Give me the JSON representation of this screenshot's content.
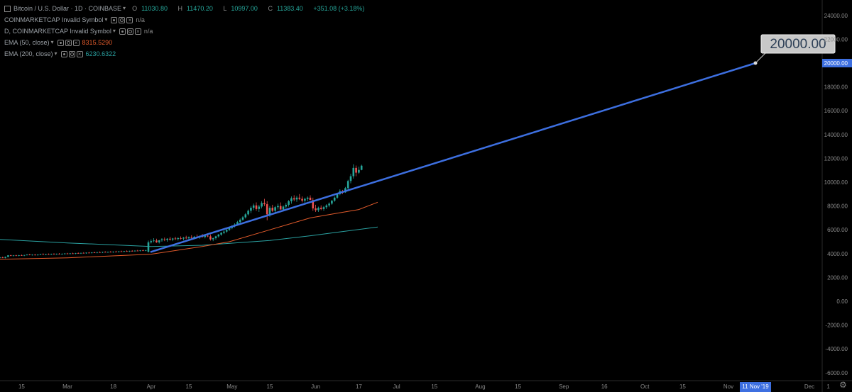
{
  "legend": {
    "main": {
      "title": "Bitcoin / U.S. Dollar · 1D · COINBASE",
      "o_label": "O",
      "o": "11030.80",
      "h_label": "H",
      "h": "11470.20",
      "l_label": "L",
      "l": "10997.00",
      "c_label": "C",
      "c": "11383.40",
      "change": "+351.08 (+3.18%)"
    },
    "indicators": [
      {
        "title": "COINMARKETCAP Invalid Symbol",
        "value": "n/a"
      },
      {
        "title": "D, COINMARKETCAP Invalid Symbol",
        "value": "n/a"
      },
      {
        "title": "EMA (50, close)",
        "value": "8315.5290"
      },
      {
        "title": "EMA (200, close)",
        "value": "6230.6322"
      }
    ]
  },
  "colors": {
    "up": "#26a69a",
    "down": "#ef5350",
    "trendline": "#3d6fe0",
    "ema50": "#e05a2b",
    "ema200": "#2aa1a1",
    "axis_text": "#8a8a8a",
    "price_marker_bg": "#3d6fe0",
    "callout_bg": "#c8c8c8",
    "callout_text": "#2e4057"
  },
  "chart_data": {
    "type": "candlestick",
    "symbol": "Bitcoin / U.S. Dollar",
    "interval": "1D",
    "exchange": "COINBASE",
    "ylim": [
      -7000,
      25000
    ],
    "y_ticks": [
      "24000.00",
      "22000.00",
      "20000.00",
      "18000.00",
      "16000.00",
      "14000.00",
      "12000.00",
      "10000.00",
      "8000.00",
      "6000.00",
      "4000.00",
      "2000.00",
      "0.00",
      "-2000.00",
      "-4000.00",
      "-6000.00"
    ],
    "x_ticks": [
      "15",
      "Mar",
      "18",
      "Apr",
      "15",
      "May",
      "15",
      "Jun",
      "17",
      "Jul",
      "15",
      "Aug",
      "15",
      "Sep",
      "16",
      "Oct",
      "15",
      "Nov",
      "15",
      "Dec",
      "1"
    ],
    "x_tick_days": [
      -17,
      0,
      17,
      31,
      45,
      61,
      75,
      92,
      108,
      122,
      136,
      153,
      167,
      184,
      199,
      214,
      228,
      245,
      259,
      275,
      282
    ],
    "date_marker": {
      "label": "11 Nov '19",
      "day": 255
    },
    "price_marker": {
      "label": "20000.00",
      "value": 20000
    },
    "trendline": {
      "start": {
        "day": 31,
        "value": 4150
      },
      "end": {
        "day": 255,
        "value": 20000
      },
      "label": "20000.00"
    },
    "ema50": {
      "day": [
        -30,
        0,
        31,
        50,
        60,
        75,
        90,
        100,
        108,
        115
      ],
      "value": [
        3500,
        3650,
        3950,
        4600,
        5000,
        6000,
        7000,
        7400,
        7700,
        8315
      ]
    },
    "ema200": {
      "day": [
        -30,
        0,
        31,
        50,
        75,
        90,
        100,
        115
      ],
      "value": [
        5250,
        4900,
        4600,
        4700,
        5100,
        5500,
        5800,
        6230
      ]
    },
    "candles": {
      "start_day": -30,
      "ohlc": [
        [
          3580,
          3650,
          3520,
          3620
        ],
        [
          3620,
          3680,
          3560,
          3600
        ],
        [
          3600,
          3660,
          3540,
          3640
        ],
        [
          3640,
          3700,
          3590,
          3610
        ],
        [
          3610,
          3680,
          3560,
          3660
        ],
        [
          3660,
          3720,
          3610,
          3690
        ],
        [
          3690,
          3750,
          3620,
          3640
        ],
        [
          3640,
          3760,
          3600,
          3720
        ],
        [
          3720,
          3880,
          3700,
          3860
        ],
        [
          3860,
          3900,
          3780,
          3820
        ],
        [
          3820,
          3880,
          3770,
          3850
        ],
        [
          3850,
          3900,
          3800,
          3830
        ],
        [
          3830,
          3890,
          3780,
          3870
        ],
        [
          3870,
          3920,
          3820,
          3840
        ],
        [
          3840,
          3900,
          3790,
          3880
        ],
        [
          3880,
          3950,
          3840,
          3920
        ],
        [
          3920,
          3980,
          3860,
          3890
        ],
        [
          3890,
          3940,
          3840,
          3910
        ],
        [
          3910,
          3960,
          3850,
          3880
        ],
        [
          3880,
          3940,
          3830,
          3920
        ],
        [
          3920,
          3990,
          3880,
          3960
        ],
        [
          3960,
          4020,
          3900,
          3930
        ],
        [
          3930,
          3990,
          3880,
          3960
        ],
        [
          3960,
          4010,
          3900,
          3940
        ],
        [
          3940,
          4000,
          3890,
          3970
        ],
        [
          3970,
          4030,
          3920,
          3950
        ],
        [
          3950,
          4010,
          3900,
          3990
        ],
        [
          3990,
          4050,
          3930,
          3960
        ],
        [
          3960,
          4020,
          3910,
          3980
        ],
        [
          3980,
          4040,
          3930,
          4010
        ],
        [
          4010,
          4060,
          3950,
          3990
        ],
        [
          3990,
          4050,
          3940,
          4020
        ],
        [
          4020,
          4080,
          3970,
          4000
        ],
        [
          4000,
          4060,
          3950,
          4040
        ],
        [
          4040,
          4100,
          3990,
          4020
        ],
        [
          4020,
          4080,
          3970,
          4060
        ],
        [
          4060,
          4120,
          4010,
          4040
        ],
        [
          4040,
          4100,
          3990,
          4080
        ],
        [
          4080,
          4140,
          4030,
          4060
        ],
        [
          4060,
          4120,
          4010,
          4100
        ],
        [
          4100,
          4160,
          4050,
          4080
        ],
        [
          4080,
          4140,
          4030,
          4120
        ],
        [
          4120,
          4180,
          4070,
          4100
        ],
        [
          4100,
          4160,
          4050,
          4140
        ],
        [
          4140,
          4200,
          4090,
          4110
        ],
        [
          4110,
          4170,
          4060,
          4150
        ],
        [
          4150,
          4210,
          4100,
          4130
        ],
        [
          4130,
          4190,
          4080,
          4170
        ],
        [
          4170,
          4230,
          4120,
          4150
        ],
        [
          4150,
          4210,
          4100,
          4190
        ],
        [
          4190,
          4250,
          4140,
          4170
        ],
        [
          4170,
          4230,
          4120,
          4210
        ],
        [
          4210,
          4270,
          4160,
          4190
        ],
        [
          4190,
          4250,
          4140,
          4230
        ],
        [
          4230,
          4290,
          4180,
          4210
        ],
        [
          4210,
          4270,
          4160,
          4250
        ],
        [
          4250,
          4310,
          4200,
          4230
        ],
        [
          4230,
          4290,
          4180,
          4270
        ],
        [
          4270,
          4330,
          4220,
          4250
        ],
        [
          4250,
          4310,
          4200,
          4290
        ],
        [
          4150,
          5100,
          4100,
          4950
        ],
        [
          4950,
          5200,
          4850,
          5050
        ],
        [
          5050,
          5300,
          4950,
          5100
        ],
        [
          5100,
          5250,
          4900,
          4950
        ],
        [
          4950,
          5150,
          4850,
          5120
        ],
        [
          5120,
          5300,
          5000,
          5200
        ],
        [
          5200,
          5350,
          5050,
          5150
        ],
        [
          5150,
          5300,
          5000,
          5250
        ],
        [
          5250,
          5400,
          5100,
          5180
        ],
        [
          5180,
          5320,
          5050,
          5270
        ],
        [
          5270,
          5420,
          5150,
          5230
        ],
        [
          5230,
          5380,
          5100,
          5300
        ],
        [
          5300,
          5450,
          5180,
          5260
        ],
        [
          5260,
          5400,
          5120,
          5340
        ],
        [
          5340,
          5500,
          5220,
          5290
        ],
        [
          5290,
          5440,
          5160,
          5380
        ],
        [
          5380,
          5550,
          5250,
          5330
        ],
        [
          5330,
          5480,
          5200,
          5420
        ],
        [
          5420,
          5600,
          5300,
          5370
        ],
        [
          5370,
          5520,
          5250,
          5460
        ],
        [
          5460,
          5650,
          5350,
          5400
        ],
        [
          5400,
          5560,
          5280,
          5500
        ],
        [
          5500,
          5700,
          5380,
          5450
        ],
        [
          5450,
          5600,
          5100,
          5200
        ],
        [
          5200,
          5350,
          5050,
          5300
        ],
        [
          5300,
          5500,
          5180,
          5450
        ],
        [
          5450,
          5650,
          5350,
          5600
        ],
        [
          5600,
          5800,
          5500,
          5750
        ],
        [
          5750,
          5950,
          5650,
          5850
        ],
        [
          5850,
          6050,
          5750,
          6000
        ],
        [
          6000,
          6250,
          5900,
          6150
        ],
        [
          6150,
          6400,
          6050,
          6300
        ],
        [
          6300,
          6550,
          6200,
          6450
        ],
        [
          6450,
          6750,
          6350,
          6650
        ],
        [
          6650,
          6950,
          6550,
          6850
        ],
        [
          6850,
          7150,
          6750,
          7050
        ],
        [
          7050,
          7400,
          6950,
          7300
        ],
        [
          7300,
          7700,
          7200,
          7600
        ],
        [
          7600,
          8000,
          7400,
          7850
        ],
        [
          7850,
          8200,
          7650,
          8050
        ],
        [
          8050,
          8300,
          7600,
          7750
        ],
        [
          7750,
          8100,
          7500,
          7950
        ],
        [
          7950,
          8400,
          7800,
          8250
        ],
        [
          8250,
          8600,
          8000,
          8150
        ],
        [
          8150,
          8400,
          6800,
          7300
        ],
        [
          7300,
          8000,
          7100,
          7850
        ],
        [
          7850,
          8100,
          7500,
          7600
        ],
        [
          7600,
          8000,
          7450,
          7900
        ],
        [
          7900,
          8200,
          7700,
          8000
        ],
        [
          8000,
          8300,
          7800,
          7700
        ],
        [
          7700,
          8050,
          7550,
          7950
        ],
        [
          7950,
          8250,
          7800,
          8100
        ],
        [
          8100,
          8500,
          7950,
          8400
        ],
        [
          8400,
          8800,
          8200,
          8650
        ],
        [
          8650,
          8900,
          8400,
          8550
        ],
        [
          8550,
          8850,
          8350,
          8700
        ],
        [
          8700,
          9000,
          8500,
          8600
        ],
        [
          8600,
          8800,
          8300,
          8450
        ],
        [
          8450,
          8700,
          8250,
          8600
        ],
        [
          8600,
          8800,
          8400,
          8700
        ],
        [
          8700,
          8900,
          8550,
          8500
        ],
        [
          8500,
          8700,
          7600,
          7800
        ],
        [
          7800,
          8100,
          7500,
          7650
        ],
        [
          7650,
          7950,
          7500,
          7850
        ],
        [
          7850,
          8050,
          7650,
          7750
        ],
        [
          7750,
          8000,
          7600,
          7900
        ],
        [
          7900,
          8150,
          7750,
          8050
        ],
        [
          8050,
          8300,
          7900,
          8200
        ],
        [
          8200,
          8500,
          8100,
          8450
        ],
        [
          8450,
          8800,
          8350,
          8700
        ],
        [
          8700,
          9100,
          8600,
          9000
        ],
        [
          9000,
          9400,
          8900,
          9250
        ],
        [
          9250,
          9350,
          9000,
          9150
        ],
        [
          9150,
          9600,
          9100,
          9500
        ],
        [
          9500,
          10200,
          9400,
          10100
        ],
        [
          10100,
          10700,
          9900,
          10500
        ],
        [
          10500,
          11500,
          10300,
          11200
        ],
        [
          11200,
          11400,
          10500,
          10800
        ],
        [
          10800,
          11300,
          10700,
          11030
        ],
        [
          11030.8,
          11470.2,
          10997,
          11383.4
        ]
      ]
    }
  }
}
